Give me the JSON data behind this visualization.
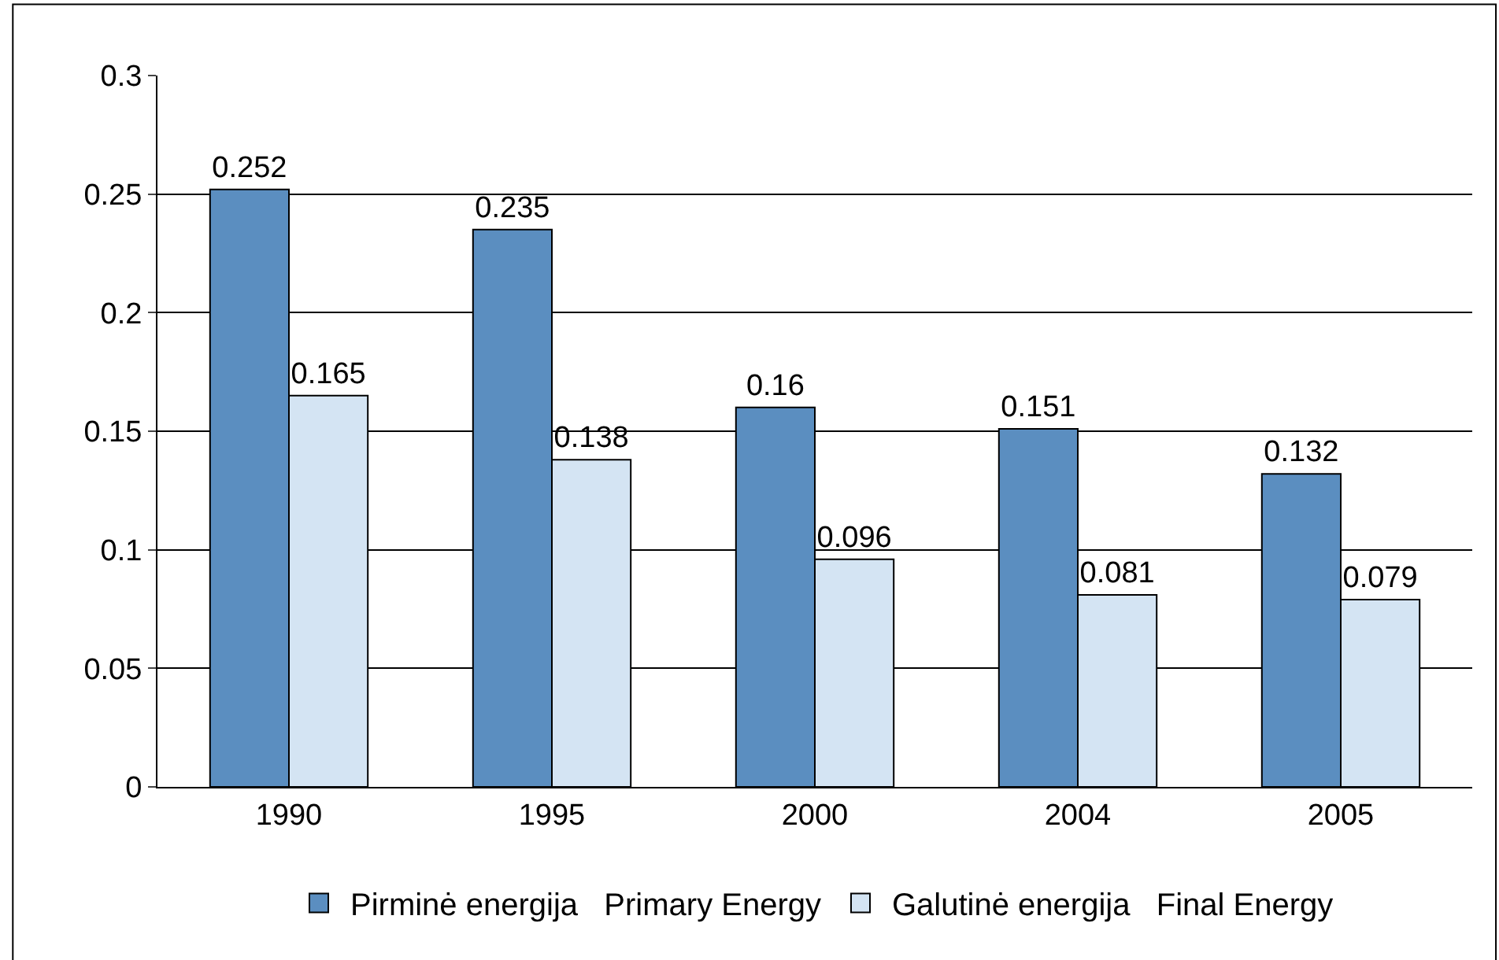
{
  "chart_data": {
    "type": "bar",
    "categories": [
      "1990",
      "1995",
      "2000",
      "2004",
      "2005"
    ],
    "series": [
      {
        "name": "Pirminė energija   Primary Energy",
        "color": "#5b8ec0",
        "values": [
          0.252,
          0.235,
          0.16,
          0.151,
          0.132
        ]
      },
      {
        "name": "Galutinė energija   Final Energy",
        "color": "#d4e4f3",
        "values": [
          0.165,
          0.138,
          0.096,
          0.081,
          0.079
        ]
      }
    ],
    "ylim": [
      0,
      0.3
    ],
    "yticks": [
      0,
      0.05,
      0.1,
      0.15,
      0.2,
      0.25,
      0.3
    ],
    "grid": "y",
    "legend": "bottom",
    "data_labels": true
  }
}
